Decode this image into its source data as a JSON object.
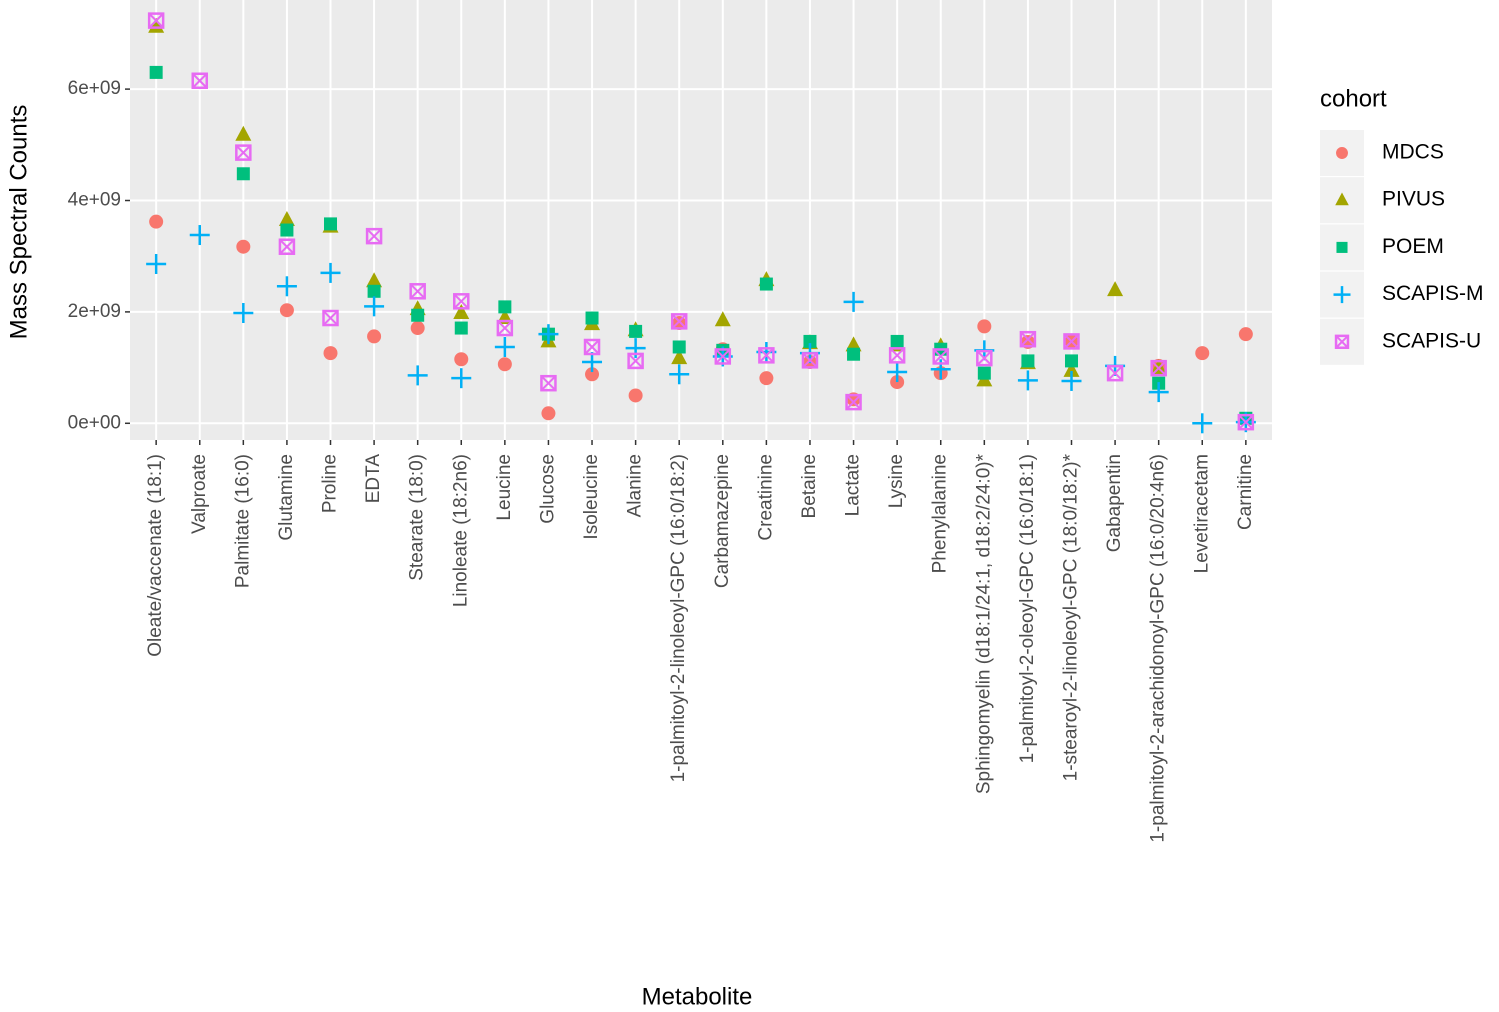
{
  "chart_data": {
    "type": "scatter",
    "x_label": "Metabolite",
    "y_label": "Mass Spectral Counts",
    "legend_title": "cohort",
    "legend_position": "right",
    "grid": true,
    "categories": [
      "Oleate/vaccenate (18:1)",
      "Valproate",
      "Palmitate (16:0)",
      "Glutamine",
      "Proline",
      "EDTA",
      "Stearate (18:0)",
      "Linoleate (18:2n6)",
      "Leucine",
      "Glucose",
      "Isoleucine",
      "Alanine",
      "1-palmitoyl-2-linoleoyl-GPC (16:0/18:2)",
      "Carbamazepine",
      "Creatinine",
      "Betaine",
      "Lactate",
      "Lysine",
      "Phenylalanine",
      "Sphingomyelin (d18:1/24:1, d18:2/24:0)*",
      "1-palmitoyl-2-oleoyl-GPC (16:0/18:1)",
      "1-stearoyl-2-linoleoyl-GPC (18:0/18:2)*",
      "Gabapentin",
      "1-palmitoyl-2-arachidonoyl-GPC (16:0/20:4n6)",
      "Levetiracetam",
      "Carnitine"
    ],
    "ylim": [
      -300000000,
      7600000000
    ],
    "yticks": [
      {
        "value": 0,
        "label": "0e+00"
      },
      {
        "value": 2000000000,
        "label": "2e+09"
      },
      {
        "value": 4000000000,
        "label": "4e+09"
      },
      {
        "value": 6000000000,
        "label": "6e+09"
      }
    ],
    "series": [
      {
        "name": "MDCS",
        "color": "#F8766D",
        "shape": "circle",
        "values": [
          3620000000,
          null,
          3170000000,
          2030000000,
          1260000000,
          1560000000,
          1710000000,
          1150000000,
          1060000000,
          180000000,
          880000000,
          500000000,
          1800000000,
          1330000000,
          810000000,
          1100000000,
          430000000,
          740000000,
          900000000,
          1740000000,
          1460000000,
          1470000000,
          null,
          1030000000,
          1260000000,
          1600000000
        ]
      },
      {
        "name": "PIVUS",
        "color": "#A3A500",
        "shape": "triangle",
        "values": [
          7120000000,
          null,
          5180000000,
          3650000000,
          3530000000,
          2550000000,
          2050000000,
          1980000000,
          1890000000,
          1470000000,
          1780000000,
          1670000000,
          1170000000,
          1850000000,
          2570000000,
          1440000000,
          1400000000,
          1400000000,
          1380000000,
          770000000,
          1080000000,
          940000000,
          2390000000,
          990000000,
          null,
          null
        ]
      },
      {
        "name": "POEM",
        "color": "#00BF7D",
        "shape": "square",
        "values": [
          6300000000,
          null,
          4480000000,
          3470000000,
          3580000000,
          2370000000,
          1940000000,
          1710000000,
          2090000000,
          1600000000,
          1890000000,
          1650000000,
          1370000000,
          1310000000,
          2500000000,
          1470000000,
          1240000000,
          1470000000,
          1330000000,
          900000000,
          1120000000,
          1120000000,
          null,
          720000000,
          null,
          90000000
        ]
      },
      {
        "name": "SCAPIS-M",
        "color": "#00B0F6",
        "shape": "plus",
        "values": [
          2860000000,
          3380000000,
          1980000000,
          2460000000,
          2700000000,
          2100000000,
          860000000,
          810000000,
          1370000000,
          1600000000,
          1100000000,
          1350000000,
          880000000,
          1200000000,
          1280000000,
          1260000000,
          2180000000,
          920000000,
          970000000,
          1310000000,
          770000000,
          760000000,
          1030000000,
          560000000,
          0,
          20000000
        ]
      },
      {
        "name": "SCAPIS-U",
        "color": "#E76BF3",
        "shape": "square-cross",
        "values": [
          7230000000,
          6150000000,
          4860000000,
          3170000000,
          1890000000,
          3360000000,
          2370000000,
          2190000000,
          1710000000,
          720000000,
          1370000000,
          1120000000,
          1830000000,
          1200000000,
          1220000000,
          1130000000,
          380000000,
          1220000000,
          1200000000,
          1170000000,
          1510000000,
          1470000000,
          900000000,
          990000000,
          null,
          20000000
        ]
      }
    ]
  }
}
